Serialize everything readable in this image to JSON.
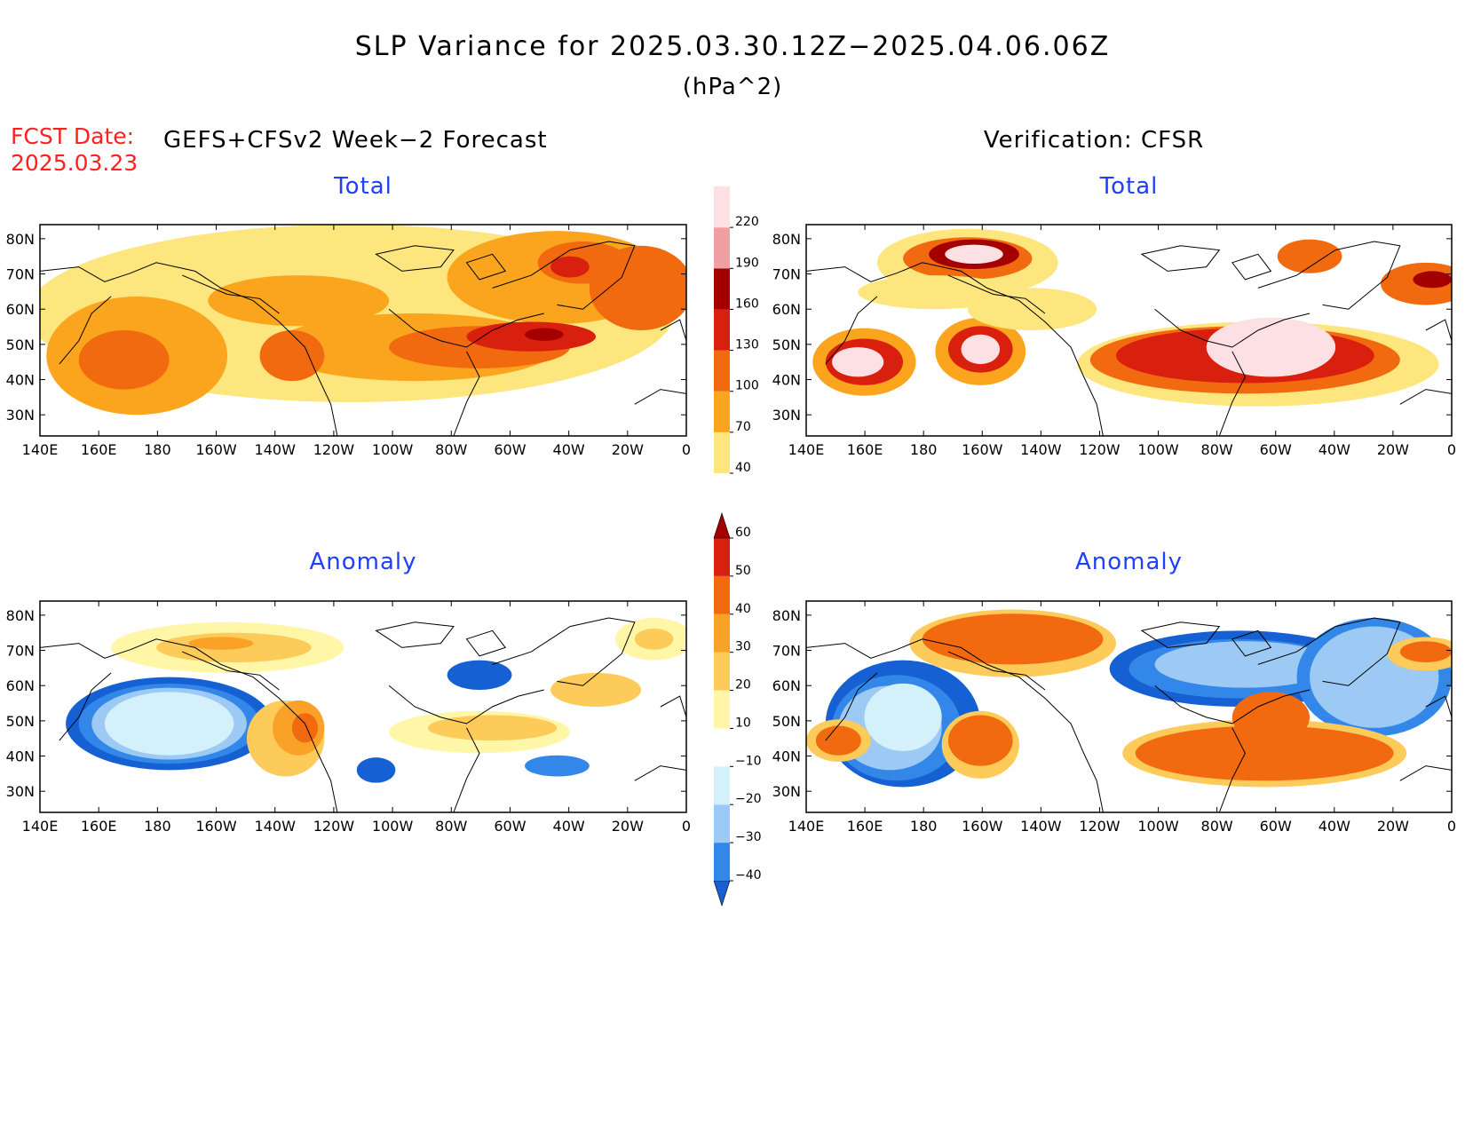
{
  "header": {
    "title": "SLP Variance for 2025.03.30.12Z−2025.04.06.06Z",
    "units": "(hPa^2)",
    "fcst_label": "FCST Date:",
    "fcst_date": "2025.03.23",
    "left_heading": "GEFS+CFSv2 Week−2 Forecast",
    "right_heading": "Verification: CFSR"
  },
  "axes": {
    "lon_labels": [
      "140E",
      "160E",
      "180",
      "160W",
      "140W",
      "120W",
      "100W",
      "80W",
      "60W",
      "40W",
      "20W",
      "0"
    ],
    "lat_labels": [
      "80N",
      "70N",
      "60N",
      "50N",
      "40N",
      "30N"
    ],
    "lon_range": [
      140,
      360
    ],
    "lat_range": [
      24,
      84
    ]
  },
  "panels": [
    {
      "id": "fcst-total",
      "title": "Total",
      "kind": "total"
    },
    {
      "id": "verif-total",
      "title": "Total",
      "kind": "total"
    },
    {
      "id": "fcst-anom",
      "title": "Anomaly",
      "kind": "anom"
    },
    {
      "id": "verif-anom",
      "title": "Anomaly",
      "kind": "anom"
    }
  ],
  "colorbars": {
    "total": {
      "levels": [
        "40",
        "70",
        "100",
        "130",
        "160",
        "190",
        "220"
      ],
      "colors": [
        "#fde67e",
        "#fba51e",
        "#f26a0f",
        "#d9200f",
        "#a50000",
        "#f0a0a5",
        "#fde0e3"
      ]
    },
    "anom": {
      "levels": [
        "−40",
        "−30",
        "−20",
        "−10",
        "10",
        "20",
        "30",
        "40",
        "50",
        "60"
      ],
      "colors": [
        "#1560d2",
        "#3287e8",
        "#9dcaf5",
        "#d4f0fb",
        "#ffffff",
        "#fff6a8",
        "#fdcb5a",
        "#faa227",
        "#f26a0f",
        "#d9200f",
        "#a50000"
      ]
    }
  },
  "colors": {
    "title": "#000000",
    "fcst_date": "#ff2020",
    "panel_title": "#1f3fff"
  }
}
